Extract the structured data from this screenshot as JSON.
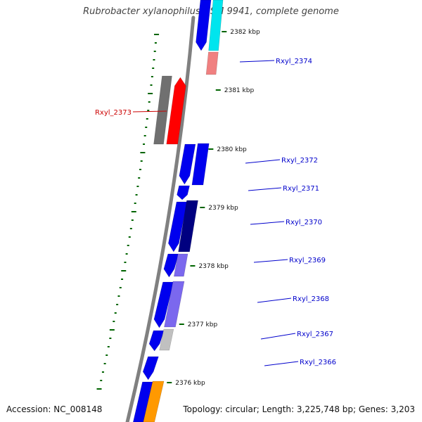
{
  "title": "Rubrobacter xylanophilus DSM 9941, complete genome",
  "accession": "Accession: NC_008148",
  "topology": "Topology: circular; Length: 3,225,748 bp; Genes: 3,203",
  "scale_labels": [
    "2382 kbp",
    "2381 kbp",
    "2380 kbp",
    "2379 kbp",
    "2378 kbp",
    "2377 kbp",
    "2376 kbp"
  ],
  "gene_labels": [
    {
      "text": "Rxyl_2374",
      "color": "#0000cc"
    },
    {
      "text": "Rxyl_2373",
      "color": "#cc0000"
    },
    {
      "text": "Rxyl_2372",
      "color": "#0000cc"
    },
    {
      "text": "Rxyl_2371",
      "color": "#0000cc"
    },
    {
      "text": "Rxyl_2370",
      "color": "#0000cc"
    },
    {
      "text": "Rxyl_2369",
      "color": "#0000cc"
    },
    {
      "text": "Rxyl_2368",
      "color": "#0000cc"
    },
    {
      "text": "Rxyl_2367",
      "color": "#0000cc"
    },
    {
      "text": "Rxyl_2366",
      "color": "#0000cc"
    }
  ],
  "colors": {
    "backbone": "#808080",
    "gene_blue": "#0000ee",
    "gene_red": "#ff0000",
    "gene_gray": "#707070",
    "gene_cyan": "#00e5ee",
    "gene_salmon": "#f08080",
    "gene_navy": "#000080",
    "gene_slate": "#7b68ee",
    "gene_lightgray": "#c0c0c0",
    "gene_orange": "#ff9900",
    "gc_skew": "#006400"
  }
}
